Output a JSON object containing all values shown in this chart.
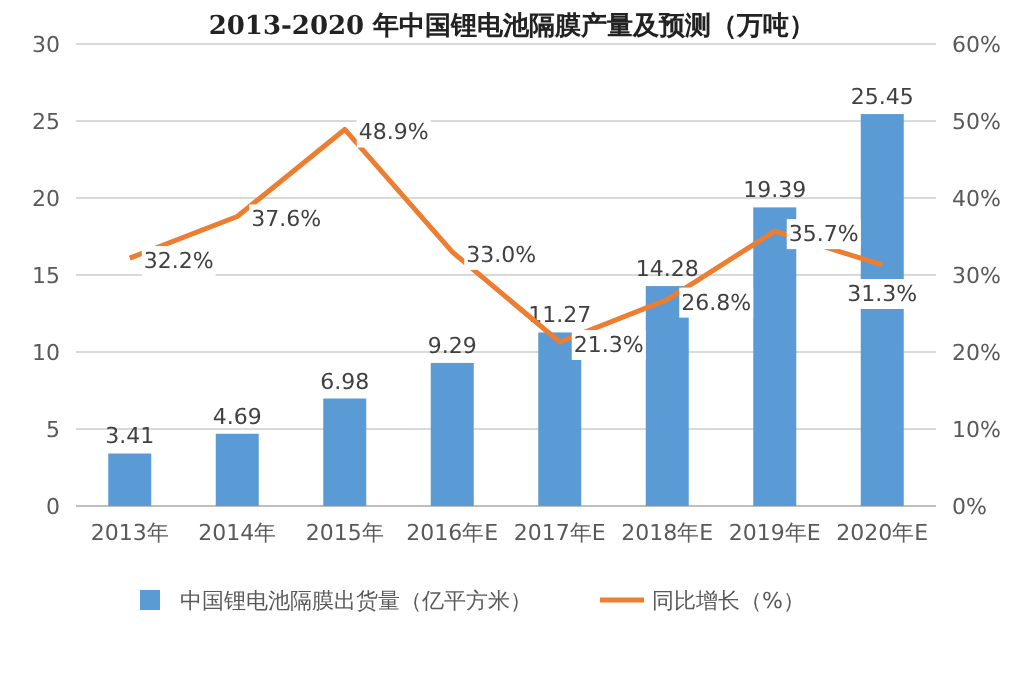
{
  "chart_data": {
    "type": "bar",
    "title": "2013-2020 年中国锂电池隔膜产量及预测（万吨）",
    "categories": [
      "2013年",
      "2014年",
      "2015年",
      "2016年E",
      "2017年E",
      "2018年E",
      "2019年E",
      "2020年E"
    ],
    "series": [
      {
        "name": "中国锂电池隔膜出货量（亿平方米）",
        "color": "#5b9bd5",
        "values": [
          3.41,
          4.69,
          6.98,
          9.29,
          11.27,
          14.28,
          19.39,
          25.45
        ],
        "value_labels": [
          "3.41",
          "4.69",
          "6.98",
          "9.29",
          "11.27",
          "14.28",
          "19.39",
          "25.45"
        ]
      },
      {
        "name": "同比增长（%）",
        "type": "line",
        "axis": "y2",
        "color": "#ed7d31",
        "values": [
          32.2,
          37.6,
          48.9,
          33.0,
          21.3,
          26.8,
          35.7,
          31.3
        ],
        "value_labels": [
          "32.2%",
          "37.6%",
          "48.9%",
          "33.0%",
          "21.3%",
          "26.8%",
          "35.7%",
          "31.3%"
        ]
      }
    ],
    "ylim": [
      0,
      30
    ],
    "yticks": [
      0,
      5,
      10,
      15,
      20,
      25,
      30
    ],
    "y2lim": [
      0,
      60
    ],
    "y2ticks": [
      {
        "value": 0,
        "label": "0%"
      },
      {
        "value": 10,
        "label": "10%"
      },
      {
        "value": 20,
        "label": "20%"
      },
      {
        "value": 30,
        "label": "30%"
      },
      {
        "value": 40,
        "label": "40%"
      },
      {
        "value": 50,
        "label": "50%"
      },
      {
        "value": 60,
        "label": "60%"
      }
    ],
    "grid": "y",
    "legend": "bottom",
    "marker": "none"
  }
}
